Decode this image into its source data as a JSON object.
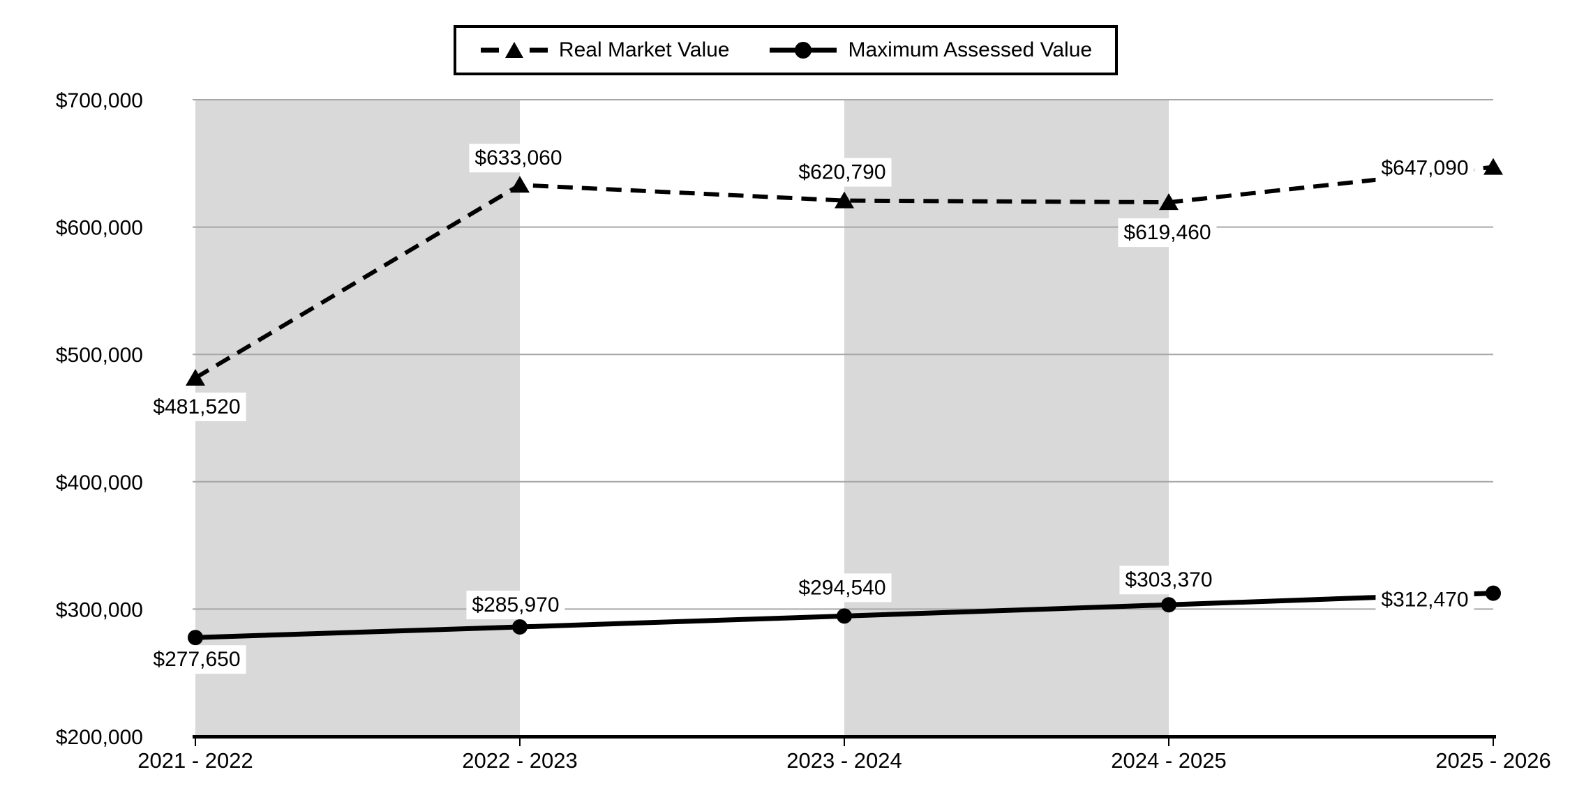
{
  "chart_data": {
    "type": "line",
    "title": "",
    "categories": [
      "2021 - 2022",
      "2022 - 2023",
      "2023 - 2024",
      "2024 - 2025",
      "2025 - 2026"
    ],
    "ylim": [
      200000,
      700000
    ],
    "ytick_step": 100000,
    "yticks": [
      {
        "value": 200000,
        "label": "$200,000"
      },
      {
        "value": 300000,
        "label": "$300,000"
      },
      {
        "value": 400000,
        "label": "$400,000"
      },
      {
        "value": 500000,
        "label": "$500,000"
      },
      {
        "value": 600000,
        "label": "$600,000"
      },
      {
        "value": 700000,
        "label": "$700,000"
      }
    ],
    "grid": true,
    "legend_position": "top-center",
    "background_bands": {
      "color": "#d9d9d9",
      "index_ranges": [
        [
          0,
          1
        ],
        [
          2,
          3
        ]
      ]
    },
    "colors": {
      "series": "#000000",
      "gridline": "#a6a6a6",
      "band": "#d9d9d9",
      "background": "#ffffff",
      "label_background": "#ffffff"
    },
    "series": [
      {
        "name": "Real Market Value",
        "line_style": "dashed",
        "marker": "triangle",
        "values": [
          481520,
          633060,
          620790,
          619460,
          647090
        ],
        "point_labels": [
          "$481,520",
          "$633,060",
          "$620,790",
          "$619,460",
          "$647,090"
        ],
        "label_offsets": [
          [
            2,
            40
          ],
          [
            -2,
            -40
          ],
          [
            -3,
            -42
          ],
          [
            -2,
            42
          ],
          [
            -98,
            0
          ]
        ]
      },
      {
        "name": "Maximum Assessed Value",
        "line_style": "solid",
        "marker": "circle",
        "values": [
          277650,
          285970,
          294540,
          303370,
          312470
        ],
        "point_labels": [
          "$277,650",
          "$285,970",
          "$294,540",
          "$303,370",
          "$312,470"
        ],
        "label_offsets": [
          [
            2,
            30
          ],
          [
            -6,
            -33
          ],
          [
            -3,
            -42
          ],
          [
            0,
            -37
          ],
          [
            -98,
            8
          ]
        ]
      }
    ]
  },
  "legend": {
    "items": [
      {
        "label": "Real Market Value",
        "sample": "dashed-triangle"
      },
      {
        "label": "Maximum Assessed Value",
        "sample": "solid-circle"
      }
    ]
  }
}
